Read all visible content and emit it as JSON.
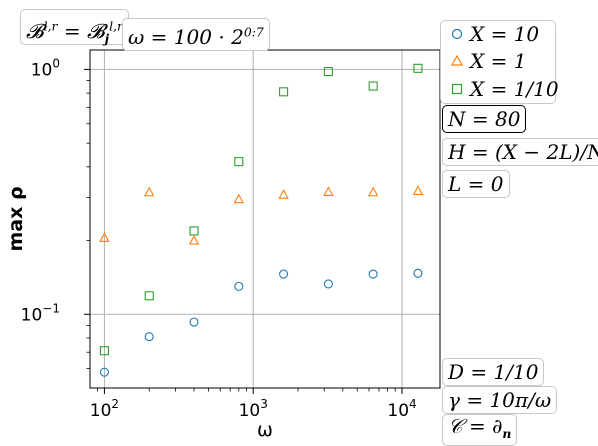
{
  "chart_data": {
    "type": "scatter",
    "xscale": "log",
    "yscale": "log",
    "xlim": [
      80,
      18000
    ],
    "ylim": [
      0.05,
      1.2
    ],
    "grid": true,
    "xlabel": "ω",
    "ylabel": "max ρ",
    "xticks": [
      {
        "value": 100,
        "base": "10",
        "exp": "2"
      },
      {
        "value": 1000,
        "base": "10",
        "exp": "3"
      },
      {
        "value": 10000,
        "base": "10",
        "exp": "4"
      }
    ],
    "yticks": [
      {
        "value": 0.1,
        "base": "10",
        "exp": "−1"
      },
      {
        "value": 1,
        "base": "10",
        "exp": "0"
      }
    ],
    "legend_position": "top-right",
    "series": [
      {
        "name": "X = 10",
        "marker": "circle",
        "color": "#1f77b4",
        "x": [
          100,
          200,
          400,
          800,
          1600,
          3200,
          6400,
          12800
        ],
        "y": [
          0.058,
          0.081,
          0.093,
          0.13,
          0.146,
          0.133,
          0.146,
          0.147
        ]
      },
      {
        "name": "X = 1",
        "marker": "triangle",
        "color": "#ff7f0e",
        "x": [
          100,
          200,
          400,
          800,
          1600,
          3200,
          6400,
          12800
        ],
        "y": [
          0.205,
          0.315,
          0.2,
          0.295,
          0.308,
          0.316,
          0.315,
          0.319
        ]
      },
      {
        "name": "X = 1/10",
        "marker": "square",
        "color": "#2ca02c",
        "x": [
          100,
          200,
          400,
          800,
          1600,
          3200,
          6400,
          12800
        ],
        "y": [
          0.071,
          0.119,
          0.219,
          0.42,
          0.81,
          0.98,
          0.855,
          1.01
        ]
      }
    ]
  },
  "annotations": {
    "condition": "𝓑^{l,r} = 𝓑_j^{l,r}",
    "omega": "ω = 100 · 2^{0:7}",
    "N": "N = 80",
    "H": "H = (X − 2L)/N",
    "L": "L = 0",
    "D": "D = 1/10",
    "gamma": "γ = 10π/ω",
    "C": "𝒞 = ∂_n"
  }
}
